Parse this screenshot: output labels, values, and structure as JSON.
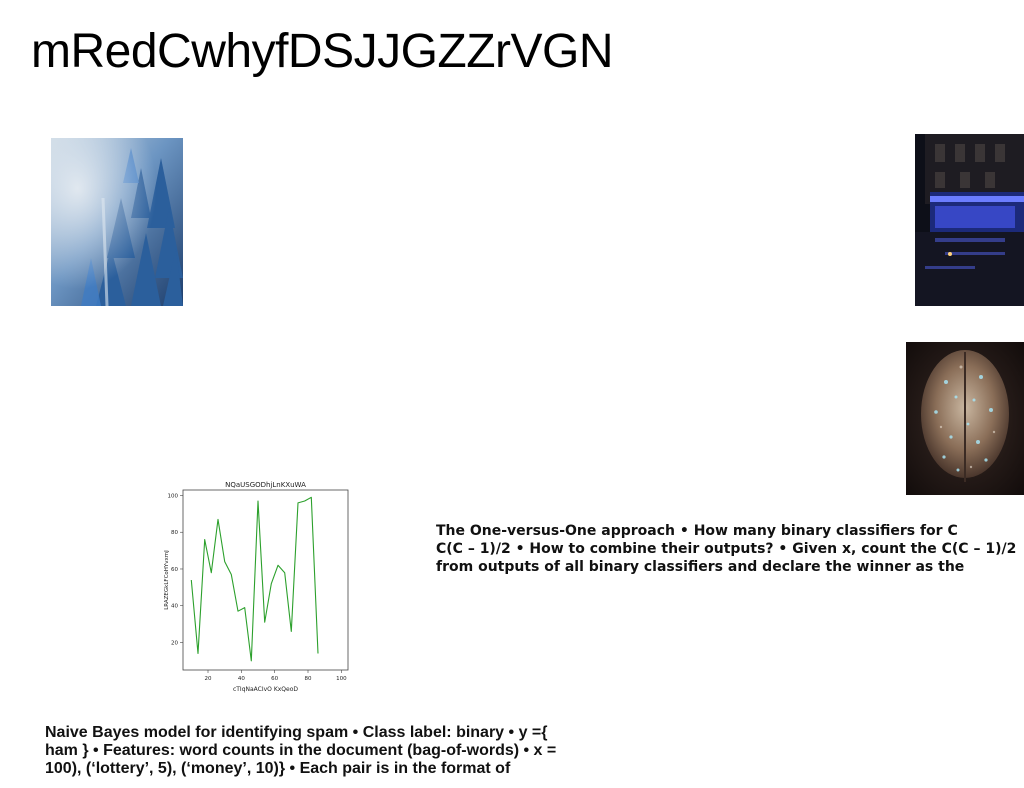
{
  "slide": {
    "title": "mRedCwhyfDSJJGZZrVGN"
  },
  "images": {
    "forest": "misty-blue-forest-photo",
    "street": "night-street-blue-lights-photo",
    "brain": "crystal-brain-sculpture-photo"
  },
  "text_blocks": {
    "one_vs_one": [
      "The One-versus-One approach • How many binary classifiers for C",
      "C(C – 1)/2 • How to combine their outputs? • Given x, count the C(C – 1)/2",
      "from outputs of all binary classifiers and declare the winner as the"
    ],
    "naive_bayes": [
      "Naive Bayes model for identifying spam • Class label: binary • y ={",
      "ham } • Features: word counts in the document (bag-of-words) • x =",
      "100), (‘lottery’, 5), (‘money’, 10)} • Each pair is in the format of"
    ]
  },
  "chart_data": {
    "type": "line",
    "title": "NQaUSGODhjLnKXuWA",
    "xlabel": "cTIqNaACIvO KxQeoD",
    "ylabel": "LRAZEGkLFCoHYvxmJ",
    "xlim": [
      5,
      104
    ],
    "ylim": [
      5,
      103
    ],
    "xticks": [
      20,
      40,
      60,
      80,
      100
    ],
    "yticks": [
      20,
      40,
      60,
      80,
      100
    ],
    "grid": false,
    "series": [
      {
        "color": "#2ca02c",
        "x": [
          10,
          14,
          18,
          22,
          26,
          30,
          34,
          38,
          42,
          46,
          50,
          54,
          58,
          62,
          66,
          70,
          74,
          78,
          82,
          86,
          90,
          94,
          98
        ],
        "y": [
          54,
          14,
          76,
          58,
          87,
          64,
          57,
          37,
          39,
          10,
          97,
          31,
          52,
          62,
          58,
          26,
          96,
          97,
          99,
          14,
          0,
          0,
          0
        ]
      }
    ]
  }
}
